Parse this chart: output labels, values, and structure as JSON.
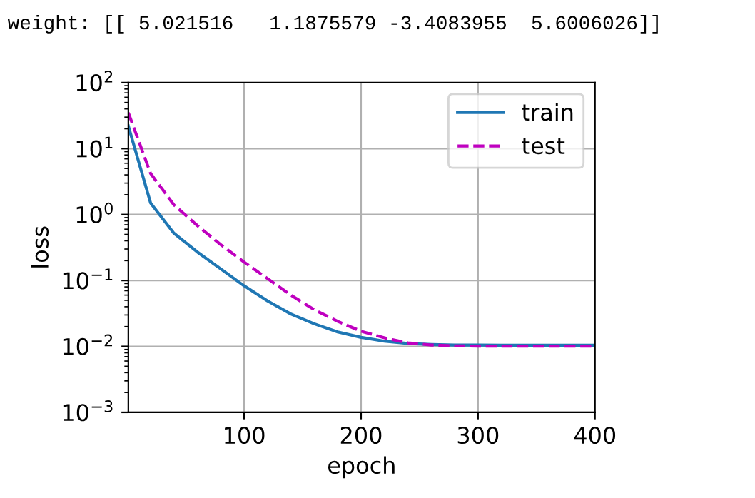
{
  "chart_data": {
    "type": "line",
    "xlabel": "epoch",
    "ylabel": "loss",
    "annotations": [
      "weight: [[ 5.021516   1.1875579 -3.4083955  5.6006026]]"
    ],
    "x": [
      1,
      20,
      40,
      60,
      80,
      100,
      120,
      140,
      160,
      180,
      200,
      220,
      240,
      260,
      280,
      300,
      320,
      340,
      360,
      380,
      400
    ],
    "series": [
      {
        "name": "train",
        "color": "#1f77b4",
        "line_style": "solid",
        "values": [
          22,
          1.5,
          0.52,
          0.27,
          0.15,
          0.083,
          0.049,
          0.031,
          0.022,
          0.0166,
          0.0137,
          0.012,
          0.0111,
          0.0107,
          0.0105,
          0.0105,
          0.0104,
          0.0104,
          0.0104,
          0.0104,
          0.0104
        ]
      },
      {
        "name": "test",
        "color": "#bf00bf",
        "line_style": "dashed",
        "values": [
          35,
          4.2,
          1.4,
          0.68,
          0.35,
          0.19,
          0.107,
          0.06,
          0.036,
          0.024,
          0.017,
          0.0135,
          0.0113,
          0.0105,
          0.0102,
          0.0101,
          0.0101,
          0.0101,
          0.0101,
          0.0101,
          0.0101
        ]
      }
    ],
    "log": "y",
    "xlim": [
      1,
      400
    ],
    "xticks": [
      100,
      200,
      300,
      400
    ],
    "ylim": [
      0.001,
      100
    ],
    "yticks": [
      {
        "value": 0.001,
        "label": "10$^{−3}$"
      },
      {
        "value": 0.01,
        "label": "10$^{−2}$"
      },
      {
        "value": 0.1,
        "label": "10$^{−1}$"
      },
      {
        "value": 1,
        "label": "10$^{0}$"
      },
      {
        "value": 10,
        "label": "10$^{1}$"
      },
      {
        "value": 100,
        "label": "10$^{2}$"
      }
    ],
    "grid": true,
    "legend": "top right",
    "marker": "none"
  }
}
